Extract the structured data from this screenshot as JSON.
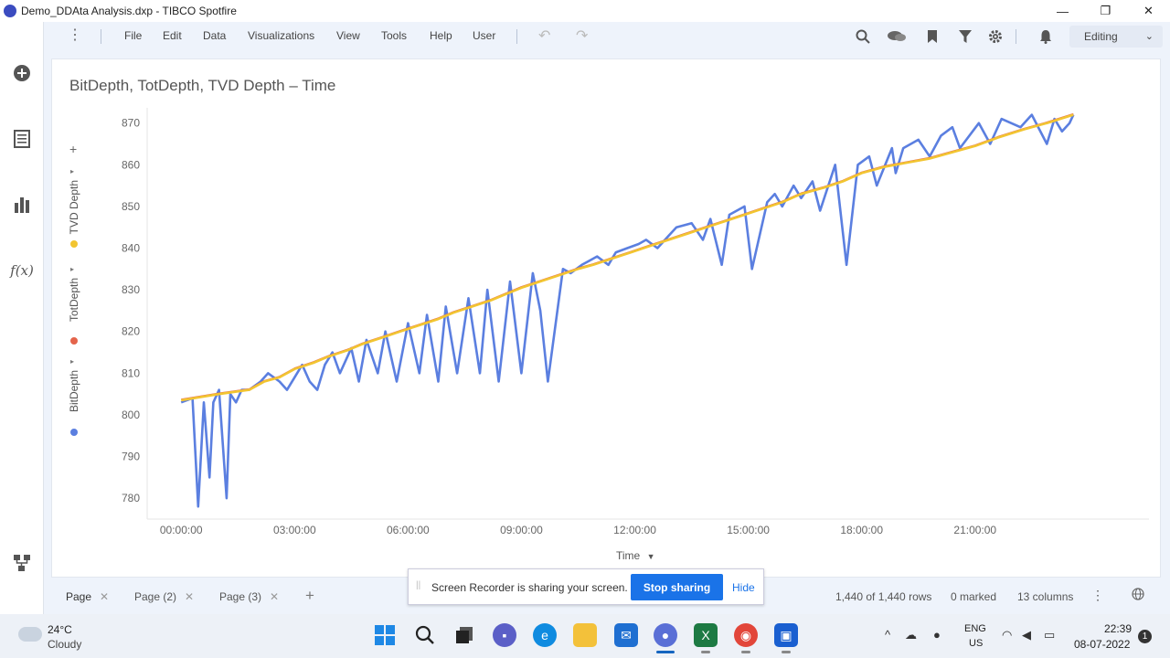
{
  "window": {
    "title": "Demo_DDAta Analysis.dxp - TIBCO Spotfire",
    "minimize": "—",
    "restore": "❐",
    "close": "✕"
  },
  "menu": {
    "items": [
      "File",
      "Edit",
      "Data",
      "Visualizations",
      "View",
      "Tools",
      "Help",
      "User"
    ],
    "mode": "Editing"
  },
  "visualization": {
    "title": "BitDepth, TotDepth, TVD Depth – Time",
    "x_axis_selector": "Time",
    "legend": [
      {
        "label": "TVD Depth",
        "color": "#f2c531"
      },
      {
        "label": "TotDepth",
        "color": "#e4644b"
      },
      {
        "label": "BitDepth",
        "color": "#5b7fe0"
      }
    ]
  },
  "chart_data": {
    "type": "line",
    "xlabel": "Time",
    "ylabel": "",
    "x_ticks": [
      "00:00:00",
      "03:00:00",
      "06:00:00",
      "09:00:00",
      "12:00:00",
      "15:00:00",
      "18:00:00",
      "21:00:00"
    ],
    "y_ticks": [
      780,
      790,
      800,
      810,
      820,
      830,
      840,
      850,
      860,
      870
    ],
    "ylim": [
      775,
      873
    ],
    "xlim_hours": [
      -0.9,
      25.6
    ],
    "series": [
      {
        "name": "TVD Depth",
        "color": "#f2c531",
        "x": [
          0.0,
          1.0,
          1.8,
          2.2,
          2.6,
          3.0,
          3.5,
          3.9,
          4.4,
          4.8,
          5.3,
          5.8,
          6.3,
          6.8,
          7.2,
          7.7,
          8.2,
          8.6,
          9.0,
          9.5,
          10.0,
          10.5,
          10.9,
          11.4,
          11.9,
          12.4,
          12.9,
          13.4,
          13.9,
          14.4,
          14.9,
          15.4,
          15.9,
          16.4,
          17.0,
          17.5,
          18.0,
          18.6,
          19.2,
          19.8,
          20.4,
          21.0,
          21.6,
          22.3,
          22.9,
          23.6
        ],
        "y": [
          803.5,
          805,
          806,
          808,
          809,
          811,
          812.5,
          814,
          815.5,
          817,
          818.5,
          820,
          821.5,
          823,
          824.5,
          826,
          827.5,
          829,
          830.5,
          832,
          833.5,
          835,
          836,
          837.5,
          839,
          840.5,
          842,
          843.5,
          845,
          846.5,
          848,
          849.5,
          851,
          853,
          854.5,
          856,
          858,
          859.5,
          860.5,
          861.5,
          863,
          864.5,
          866.5,
          868.5,
          870,
          872
        ]
      },
      {
        "name": "TotDepth",
        "color": "#e4644b",
        "x": [
          0.0,
          1.0,
          1.8,
          2.2,
          2.6,
          3.0,
          3.5,
          3.9,
          4.4,
          4.8,
          5.3,
          5.8,
          6.3,
          6.8,
          7.2,
          7.7,
          8.2,
          8.6,
          9.0,
          9.5,
          10.0,
          10.5,
          10.9,
          11.4,
          11.9,
          12.4,
          12.9,
          13.4,
          13.9,
          14.4,
          14.9,
          15.4,
          15.9,
          16.4,
          17.0,
          17.5,
          18.0,
          18.6,
          19.2,
          19.8,
          20.4,
          21.0,
          21.6,
          22.3,
          22.9,
          23.6
        ],
        "y": [
          803.7,
          805.2,
          806.2,
          808.2,
          809.2,
          811.2,
          812.7,
          814.2,
          815.7,
          817.2,
          818.7,
          820.2,
          821.7,
          823.2,
          824.7,
          826.2,
          827.7,
          829.2,
          830.7,
          832.2,
          833.7,
          835.2,
          836.2,
          837.7,
          839.2,
          840.7,
          842.2,
          843.7,
          845.2,
          846.7,
          848.2,
          849.7,
          851.2,
          853.2,
          854.7,
          856.2,
          858.2,
          859.7,
          860.7,
          861.7,
          863.2,
          864.7,
          866.7,
          868.7,
          870.2,
          872.2
        ]
      },
      {
        "name": "BitDepth",
        "color": "#5b7fe0",
        "x": [
          0.0,
          0.3,
          0.45,
          0.6,
          0.75,
          0.85,
          1.0,
          1.2,
          1.3,
          1.45,
          1.6,
          1.8,
          2.1,
          2.3,
          2.6,
          2.8,
          3.0,
          3.2,
          3.4,
          3.6,
          3.8,
          4.0,
          4.2,
          4.5,
          4.7,
          4.9,
          5.2,
          5.4,
          5.7,
          6.0,
          6.3,
          6.5,
          6.8,
          7.0,
          7.3,
          7.6,
          7.9,
          8.1,
          8.4,
          8.7,
          9.0,
          9.3,
          9.5,
          9.7,
          10.1,
          10.3,
          10.6,
          10.8,
          11.0,
          11.3,
          11.5,
          11.8,
          12.1,
          12.3,
          12.6,
          12.9,
          13.1,
          13.5,
          13.8,
          14.0,
          14.3,
          14.5,
          14.9,
          15.1,
          15.5,
          15.7,
          15.9,
          16.2,
          16.4,
          16.7,
          16.9,
          17.3,
          17.6,
          17.9,
          18.2,
          18.4,
          18.8,
          18.9,
          19.1,
          19.5,
          19.8,
          20.1,
          20.4,
          20.6,
          21.1,
          21.4,
          21.7,
          22.2,
          22.5,
          22.9,
          23.1,
          23.3,
          23.5,
          23.6
        ],
        "y": [
          803,
          804,
          778,
          803,
          785,
          803,
          806,
          780,
          805,
          803,
          806,
          806,
          808,
          810,
          808,
          806,
          809,
          812,
          808,
          806,
          812,
          815,
          810,
          816,
          808,
          818,
          810,
          820,
          808,
          822,
          810,
          824,
          808,
          826,
          810,
          828,
          810,
          830,
          808,
          832,
          810,
          834,
          825,
          808,
          835,
          834,
          836,
          837,
          838,
          836,
          839,
          840,
          841,
          842,
          840,
          843,
          845,
          846,
          842,
          847,
          836,
          848,
          850,
          835,
          851,
          853,
          850,
          855,
          852,
          856,
          849,
          860,
          836,
          860,
          862,
          855,
          864,
          858,
          864,
          866,
          862,
          867,
          869,
          864,
          870,
          865,
          871,
          869,
          872,
          865,
          871,
          868,
          870,
          872
        ]
      }
    ]
  },
  "pages": [
    {
      "label": "Page",
      "close": "✕"
    },
    {
      "label": "Page (2)",
      "close": "✕"
    },
    {
      "label": "Page (3)",
      "close": "✕"
    }
  ],
  "add_page": "+",
  "status": {
    "rows": "1,440 of 1,440 rows",
    "marked": "0 marked",
    "columns": "13 columns"
  },
  "recorder": {
    "message": "Screen Recorder is sharing your screen.",
    "stop": "Stop sharing",
    "hide": "Hide"
  },
  "taskbar": {
    "temp": "24°C",
    "weather": "Cloudy",
    "lang1": "ENG",
    "lang2": "US",
    "time": "22:39",
    "date": "08-07-2022",
    "notif_count": "1"
  }
}
